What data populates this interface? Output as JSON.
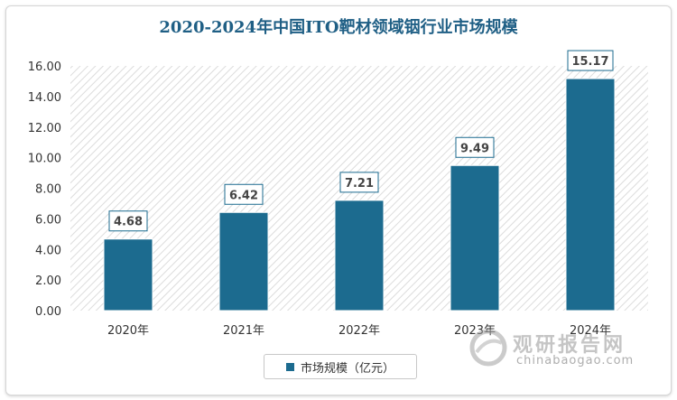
{
  "title": "2020-2024年中国ITO靶材领域铟行业市场规模",
  "chart_data": {
    "type": "bar",
    "categories": [
      "2020年",
      "2021年",
      "2022年",
      "2023年",
      "2024年"
    ],
    "series": [
      {
        "name": "市场规模（亿元）",
        "values": [
          4.68,
          6.42,
          7.21,
          9.49,
          15.17
        ]
      }
    ],
    "value_labels": [
      "4.68",
      "6.42",
      "7.21",
      "9.49",
      "15.17"
    ],
    "y_ticks": [
      "0.00",
      "2.00",
      "4.00",
      "6.00",
      "8.00",
      "10.00",
      "12.00",
      "14.00",
      "16.00"
    ],
    "ylim": [
      0,
      16
    ],
    "legend_position": "bottom",
    "colors": {
      "bar": "#1c6b8f",
      "title": "#1f5f85"
    }
  },
  "watermark": {
    "brand": "观研报告网",
    "url": "chinabaogao.com"
  }
}
